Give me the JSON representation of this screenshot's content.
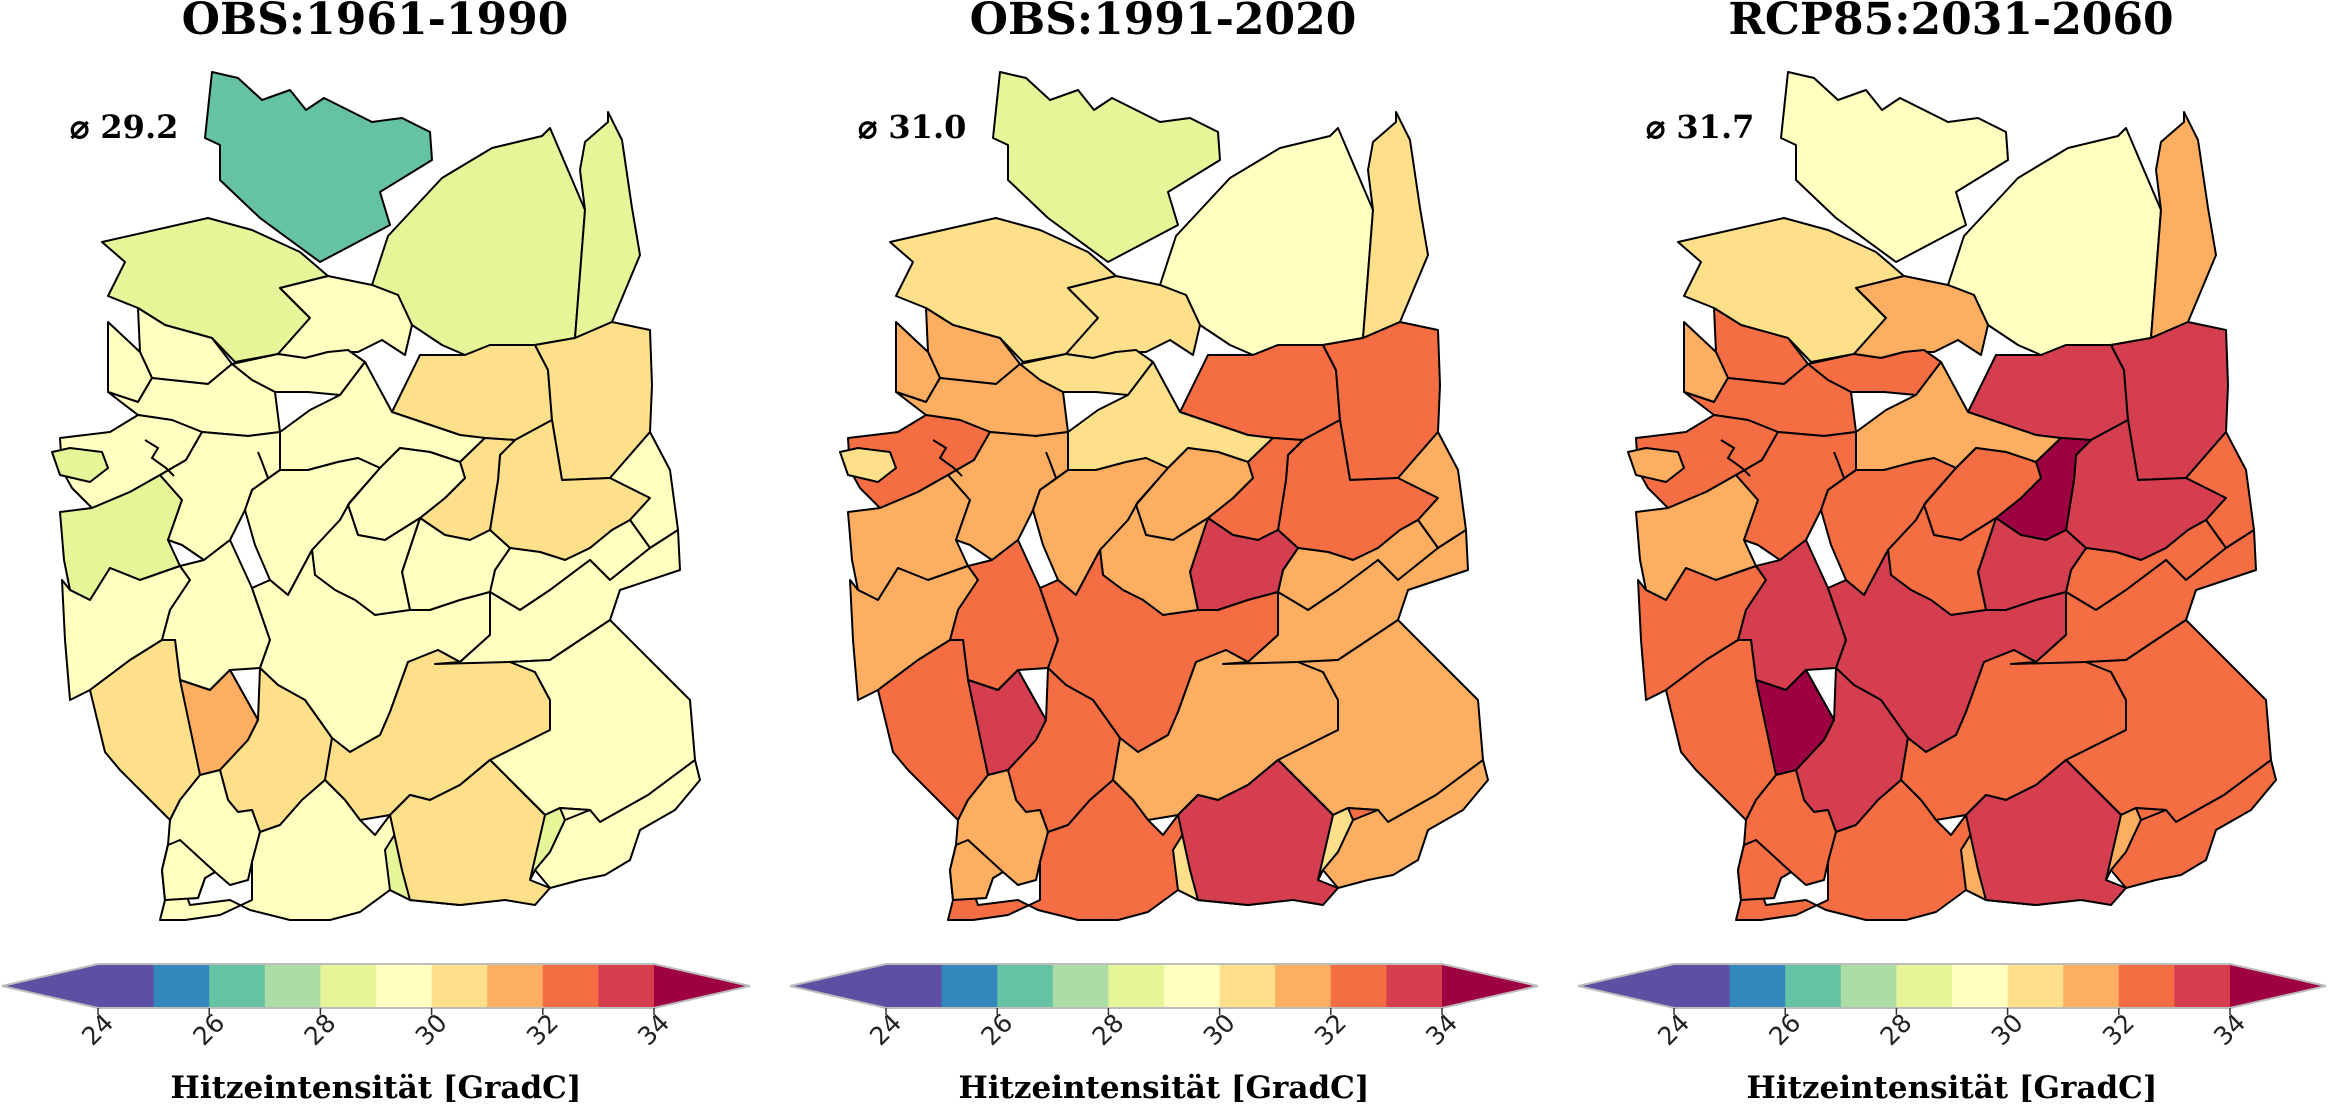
{
  "colors": {
    "palette": [
      "#5e4fa2",
      "#3288bd",
      "#66c2a5",
      "#abdda4",
      "#e6f598",
      "#ffffbf",
      "#fee08b",
      "#fdae61",
      "#f46d43",
      "#d53e4f",
      "#9e0142"
    ],
    "bounds": [
      24,
      25,
      26,
      27,
      28,
      29,
      30,
      31,
      32,
      33,
      34,
      35
    ],
    "under": "#5e4fa2",
    "over": "#9e0142"
  },
  "chart_data": [
    {
      "type": "choropleth-map",
      "title": "OBS:1961-1990",
      "mean_label": "⌀ 29.2",
      "mean": 29.2,
      "region_values": [
        26.5,
        28.4,
        28.4,
        28.2,
        29.3,
        29.4,
        29.3,
        29.5,
        29.3,
        30.6,
        30.8,
        30.3,
        29.6,
        29.3,
        30.1,
        29.4,
        29.3,
        28.4,
        28.7,
        29.3,
        29.5,
        29.6,
        29.6,
        29.7,
        29.4,
        29.5,
        29.2,
        30.2,
        31.1,
        30.4,
        30.1,
        29.6,
        29.5,
        29.7,
        29.5,
        28.4,
        29.6,
        29.5,
        30.6
      ],
      "colorbar": {
        "ticks": [
          "24",
          "26",
          "28",
          "30",
          "32",
          "34"
        ],
        "label": "Hitzeintensität [GradC]"
      }
    },
    {
      "type": "choropleth-map",
      "title": "OBS:1991-2020",
      "mean_label": "⌀ 31.0",
      "mean": 31.0,
      "region_values": [
        28.4,
        30.4,
        29.4,
        30.6,
        30.5,
        31.4,
        30.9,
        31.3,
        31.2,
        32.4,
        32.3,
        32.6,
        31.4,
        30.7,
        32.6,
        31.4,
        32.2,
        30.7,
        31.2,
        31.2,
        31.1,
        31.5,
        33.1,
        31.6,
        31.3,
        32.4,
        32.2,
        32.7,
        33.3,
        32.1,
        31.6,
        31.6,
        31.4,
        31.7,
        32.0,
        30.5,
        31.6,
        31.3,
        33.2
      ],
      "colorbar": {
        "ticks": [
          "24",
          "26",
          "28",
          "30",
          "32",
          "34"
        ],
        "label": "Hitzeintensität [GradC]"
      }
    },
    {
      "type": "choropleth-map",
      "title": "RCP85:2031-2060",
      "mean_label": "⌀ 31.7",
      "mean": 31.7,
      "region_values": [
        29.4,
        30.6,
        29.4,
        31.5,
        31.4,
        32.5,
        32.2,
        31.5,
        32.4,
        33.5,
        33.3,
        33.4,
        32.1,
        31.4,
        34.2,
        32.4,
        32.4,
        31.5,
        31.6,
        32.1,
        32.3,
        32.2,
        33.2,
        32.0,
        32.6,
        33.4,
        33.3,
        32.6,
        34.4,
        33.2,
        32.4,
        32.2,
        32.3,
        32.4,
        32.2,
        31.5,
        32.3,
        32.5,
        33.3
      ],
      "colorbar": {
        "ticks": [
          "24",
          "26",
          "28",
          "30",
          "32",
          "34"
        ],
        "label": "Hitzeintensität [GradC]"
      }
    }
  ]
}
